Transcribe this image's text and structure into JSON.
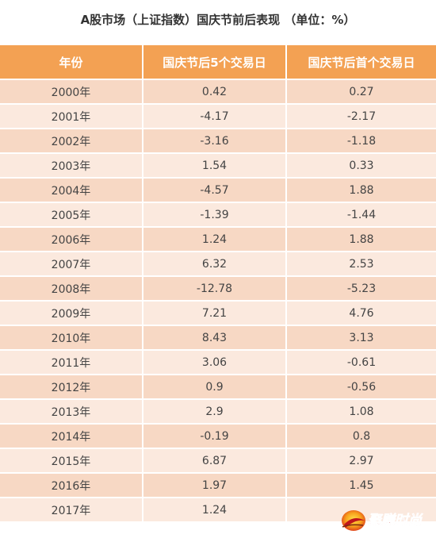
{
  "title": "A股市场（上证指数）国庆节前后表现 （单位：%）",
  "table": {
    "headers": [
      "年份",
      "国庆节后5个交易日",
      "国庆节后首个交易日"
    ],
    "rows": [
      [
        "2000年",
        "0.42",
        "0.27"
      ],
      [
        "2001年",
        "-4.17",
        "-2.17"
      ],
      [
        "2002年",
        "-3.16",
        "-1.18"
      ],
      [
        "2003年",
        "1.54",
        "0.33"
      ],
      [
        "2004年",
        "-4.57",
        "1.88"
      ],
      [
        "2005年",
        "-1.39",
        "-1.44"
      ],
      [
        "2006年",
        "1.24",
        "1.88"
      ],
      [
        "2007年",
        "6.32",
        "2.53"
      ],
      [
        "2008年",
        "-12.78",
        "-5.23"
      ],
      [
        "2009年",
        "7.21",
        "4.76"
      ],
      [
        "2010年",
        "8.43",
        "3.13"
      ],
      [
        "2011年",
        "3.06",
        "-0.61"
      ],
      [
        "2012年",
        "0.9",
        "-0.56"
      ],
      [
        "2013年",
        "2.9",
        "1.08"
      ],
      [
        "2014年",
        "-0.19",
        "0.8"
      ],
      [
        "2015年",
        "6.87",
        "2.97"
      ],
      [
        "2016年",
        "1.97",
        "1.45"
      ],
      [
        "2017年",
        "1.24",
        ""
      ]
    ]
  },
  "watermark": {
    "text": "聚赚时尚",
    "icon": "sun-logo-icon",
    "color": "#c0151b"
  },
  "colors": {
    "header_bg": "#f3a153",
    "row_dark": "#f7d8c4",
    "row_light": "#fbe9de"
  }
}
